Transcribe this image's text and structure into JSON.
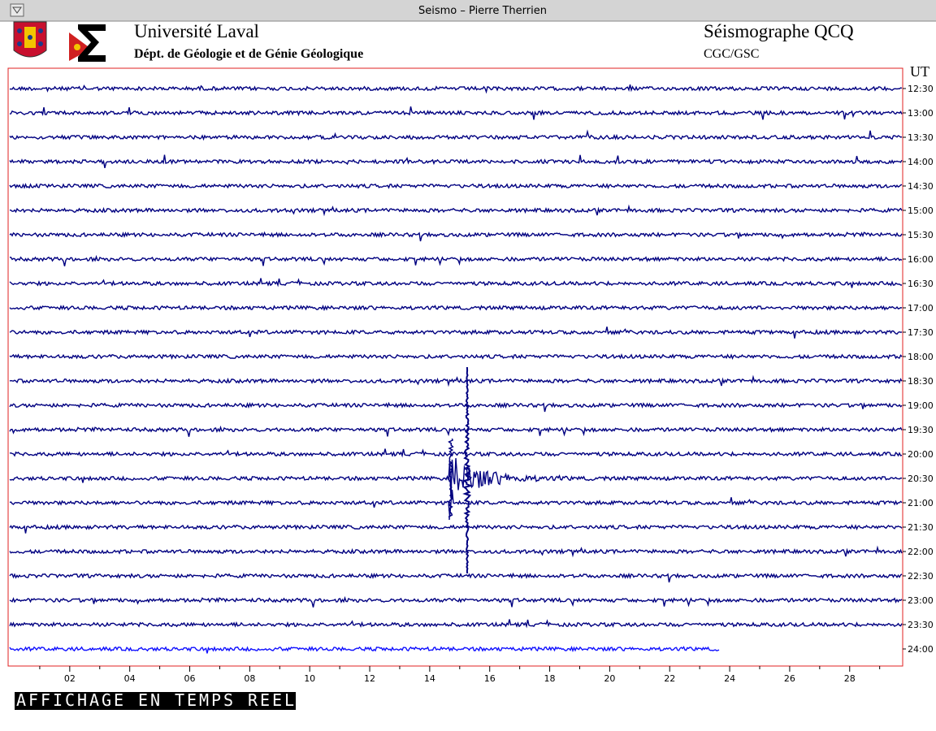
{
  "window": {
    "title": "Seismo – Pierre Therrien"
  },
  "header": {
    "institution": "Université Laval",
    "department": "Dépt. de Géologie et de Génie Géologique",
    "station": "Séismographe QCQ",
    "network": "CGC/GSC"
  },
  "axis": {
    "unit_label": "UT",
    "row_labels": [
      "12:30",
      "13:00",
      "13:30",
      "14:00",
      "14:30",
      "15:00",
      "15:30",
      "16:00",
      "16:30",
      "17:00",
      "17:30",
      "18:00",
      "18:30",
      "19:00",
      "19:30",
      "20:00",
      "20:30",
      "21:00",
      "21:30",
      "22:00",
      "22:30",
      "23:00",
      "23:30",
      "24:00"
    ],
    "x_labels": [
      "02",
      "04",
      "06",
      "08",
      "10",
      "12",
      "14",
      "16",
      "18",
      "20",
      "22",
      "24",
      "26",
      "28"
    ]
  },
  "status": "AFFICHAGE EN TEMPS REEL"
}
